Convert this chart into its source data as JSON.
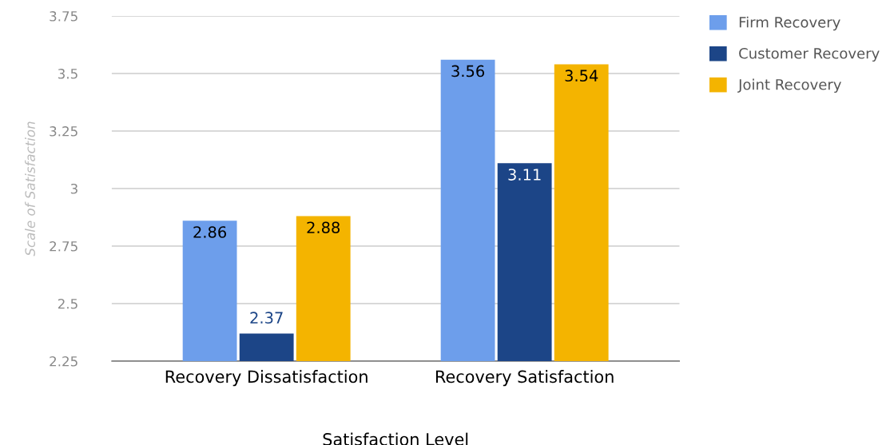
{
  "chart_data": {
    "type": "bar",
    "xlabel": "Satisfaction Level",
    "ylabel": "Scale of Satisfaction",
    "categories": [
      "Recovery Dissatisfaction",
      "Recovery Satisfaction"
    ],
    "series": [
      {
        "name": "Firm Recovery",
        "color": "#6d9eeb",
        "values": [
          2.86,
          3.56
        ]
      },
      {
        "name": "Customer Recovery",
        "color": "#1c4587",
        "values": [
          2.37,
          3.11
        ]
      },
      {
        "name": "Joint Recovery",
        "color": "#f4b400",
        "values": [
          2.88,
          3.54
        ]
      }
    ],
    "ylim": [
      2.25,
      3.75
    ],
    "yticks": [
      2.25,
      2.5,
      2.75,
      3,
      3.25,
      3.5,
      3.75
    ],
    "grid": "y",
    "legend": "top right",
    "data_labels": true
  }
}
